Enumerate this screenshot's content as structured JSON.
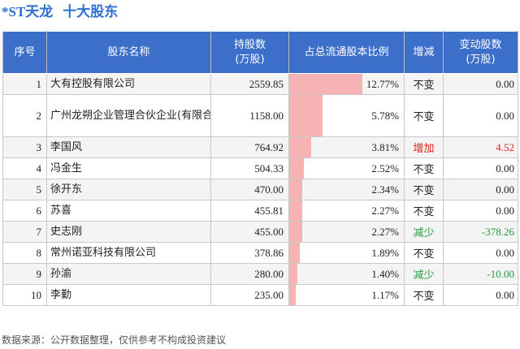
{
  "title": {
    "stock_name": "*ST天龙",
    "subtitle": "十大股东"
  },
  "table": {
    "headers": {
      "rank": "序号",
      "name": "股东名称",
      "holding": "持股数\n(万股)",
      "ratio": "占总流通股本比例",
      "change": "增减",
      "delta": "变动股数\n(万股)"
    }
  },
  "chart_data": {
    "type": "table",
    "columns": [
      "序号",
      "股东名称",
      "持股数(万股)",
      "占总流通股本比例",
      "增减",
      "变动股数(万股)"
    ],
    "rows": [
      {
        "rank": "1",
        "name": "大有控股有限公司",
        "holding": "2559.85",
        "ratio": "12.77%",
        "ratio_value": 12.77,
        "change": "不变",
        "delta": "0.00"
      },
      {
        "rank": "2",
        "name": "广州龙朔企业管理合伙企业(有限合伙)",
        "holding": "1158.00",
        "ratio": "5.78%",
        "ratio_value": 5.78,
        "change": "不变",
        "delta": "0.00"
      },
      {
        "rank": "3",
        "name": "李国风",
        "holding": "764.92",
        "ratio": "3.81%",
        "ratio_value": 3.81,
        "change": "增加",
        "delta": "4.52"
      },
      {
        "rank": "4",
        "name": "冯金生",
        "holding": "504.33",
        "ratio": "2.52%",
        "ratio_value": 2.52,
        "change": "不变",
        "delta": "0.00"
      },
      {
        "rank": "5",
        "name": "徐开东",
        "holding": "470.00",
        "ratio": "2.34%",
        "ratio_value": 2.34,
        "change": "不变",
        "delta": "0.00"
      },
      {
        "rank": "6",
        "name": "苏喜",
        "holding": "455.81",
        "ratio": "2.27%",
        "ratio_value": 2.27,
        "change": "不变",
        "delta": "0.00"
      },
      {
        "rank": "7",
        "name": "史志刚",
        "holding": "455.00",
        "ratio": "2.27%",
        "ratio_value": 2.27,
        "change": "减少",
        "delta": "-378.26"
      },
      {
        "rank": "8",
        "name": "常州诺亚科技有限公司",
        "holding": "378.86",
        "ratio": "1.89%",
        "ratio_value": 1.89,
        "change": "不变",
        "delta": "0.00"
      },
      {
        "rank": "9",
        "name": "孙渝",
        "holding": "280.00",
        "ratio": "1.40%",
        "ratio_value": 1.4,
        "change": "减少",
        "delta": "-10.00"
      },
      {
        "rank": "10",
        "name": "李勤",
        "holding": "235.00",
        "ratio": "1.17%",
        "ratio_value": 1.17,
        "change": "不变",
        "delta": "0.00"
      }
    ]
  },
  "colors": {
    "header_bg": "#3b6fc9",
    "title": "#2d6fd1",
    "ratio_bar": "#f7b3b3",
    "increase": "#e0231c",
    "decrease": "#1f9c3a"
  },
  "footer": {
    "source": "数据来源：公开数据整理，仅供参考不构成投资建议"
  }
}
